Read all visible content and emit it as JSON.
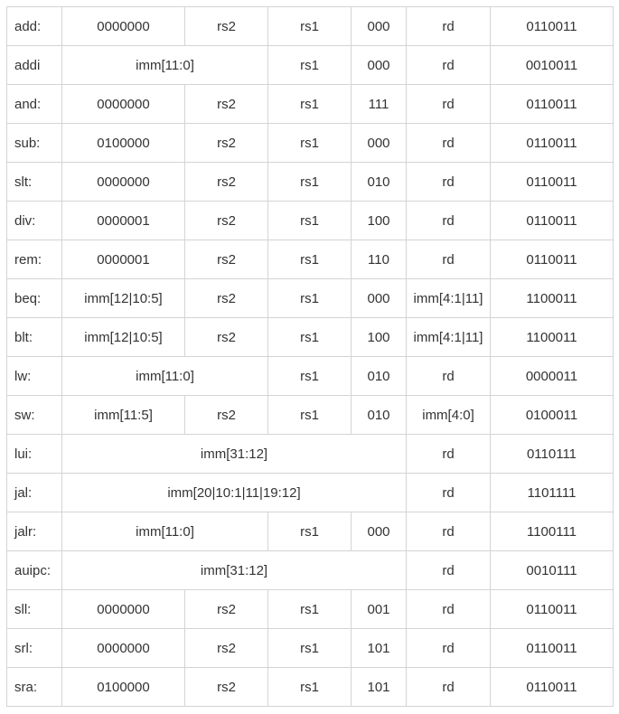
{
  "instruction_encodings": [
    {
      "name": "add:",
      "fields": [
        "0000000",
        "rs2",
        "rs1",
        "000",
        "rd",
        "0110011"
      ]
    },
    {
      "name": "addi",
      "fields": [
        "imm[11:0]",
        "rs1",
        "000",
        "rd",
        "0010011"
      ]
    },
    {
      "name": "and:",
      "fields": [
        "0000000",
        "rs2",
        "rs1",
        "111",
        "rd",
        "0110011"
      ]
    },
    {
      "name": "sub:",
      "fields": [
        "0100000",
        "rs2",
        "rs1",
        "000",
        "rd",
        "0110011"
      ]
    },
    {
      "name": "slt:",
      "fields": [
        "0000000",
        "rs2",
        "rs1",
        "010",
        "rd",
        "0110011"
      ]
    },
    {
      "name": "div:",
      "fields": [
        "0000001",
        "rs2",
        "rs1",
        "100",
        "rd",
        "0110011"
      ]
    },
    {
      "name": "rem:",
      "fields": [
        "0000001",
        "rs2",
        "rs1",
        "110",
        "rd",
        "0110011"
      ]
    },
    {
      "name": "beq:",
      "fields": [
        "imm[12|10:5]",
        "rs2",
        "rs1",
        "000",
        "imm[4:1|11]",
        "1100011"
      ]
    },
    {
      "name": "blt:",
      "fields": [
        "imm[12|10:5]",
        "rs2",
        "rs1",
        "100",
        "imm[4:1|11]",
        "1100011"
      ]
    },
    {
      "name": "lw:",
      "fields": [
        "imm[11:0]",
        "rs1",
        "010",
        "rd",
        "0000011"
      ]
    },
    {
      "name": "sw:",
      "fields": [
        "imm[11:5]",
        "rs2",
        "rs1",
        "010",
        "imm[4:0]",
        "0100011"
      ]
    },
    {
      "name": "lui:",
      "fields": [
        "imm[31:12]",
        "rd",
        "0110111"
      ]
    },
    {
      "name": "jal:",
      "fields": [
        "imm[20|10:1|11|19:12]",
        "rd",
        "1101111"
      ]
    },
    {
      "name": "jalr:",
      "fields": [
        "imm[11:0]",
        "rs1",
        "000",
        "rd",
        "1100111"
      ]
    },
    {
      "name": "auipc:",
      "fields": [
        "imm[31:12]",
        "rd",
        "0010111"
      ]
    },
    {
      "name": "sll:",
      "fields": [
        "0000000",
        "rs2",
        "rs1",
        "001",
        "rd",
        "0110011"
      ]
    },
    {
      "name": "srl:",
      "fields": [
        "0000000",
        "rs2",
        "rs1",
        "101",
        "rd",
        "0110011"
      ]
    },
    {
      "name": "sra:",
      "fields": [
        "0100000",
        "rs2",
        "rs1",
        "101",
        "rd",
        "0110011"
      ]
    }
  ]
}
